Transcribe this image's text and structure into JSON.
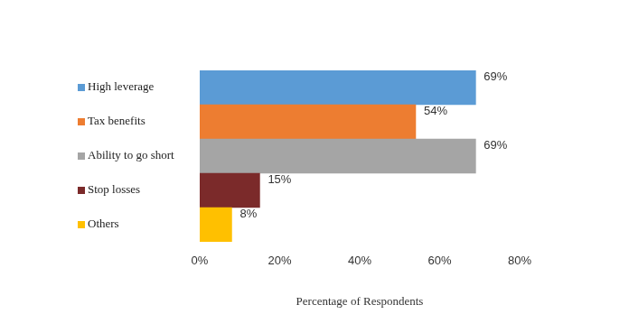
{
  "chart_data": {
    "type": "bar",
    "orientation": "horizontal",
    "categories": [
      "High leverage",
      "Tax benefits",
      "Ability to go short",
      "Stop losses",
      "Others"
    ],
    "values": [
      69,
      54,
      69,
      15,
      8
    ],
    "value_labels": [
      "69%",
      "54%",
      "69%",
      "15%",
      "8%"
    ],
    "colors": [
      "#5b9bd5",
      "#ed7d31",
      "#a5a5a5",
      "#7b2a2a",
      "#ffc000"
    ],
    "xlabel": "Percentage of Respondents",
    "xlim": [
      0,
      80
    ],
    "xticks": [
      {
        "value": 0,
        "label": "0%"
      },
      {
        "value": 20,
        "label": "20%"
      },
      {
        "value": 40,
        "label": "40%"
      },
      {
        "value": 60,
        "label": "60%"
      },
      {
        "value": 80,
        "label": "80%"
      }
    ],
    "grid": false,
    "data_labels": true
  }
}
